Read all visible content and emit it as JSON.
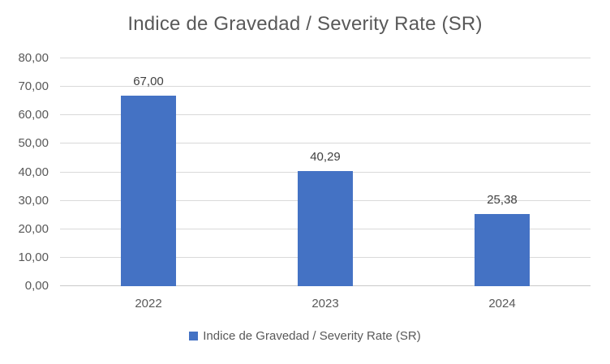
{
  "title": "Indice de Gravedad / Severity Rate (SR)",
  "legend": {
    "swatch_color": "#4472C4",
    "label": "Indice de Gravedad / Severity Rate (SR)"
  },
  "colors": {
    "bar": "#4472C4",
    "title_text": "#595959",
    "axis_text": "#595959",
    "value_label_text": "#404040",
    "gridline": "#D9D9D9",
    "axis_line": "#C9C9C9",
    "background": "#FFFFFF"
  },
  "chart_data": {
    "type": "bar",
    "title": "Indice de Gravedad / Severity Rate (SR)",
    "categories": [
      "2022",
      "2023",
      "2024"
    ],
    "values": [
      67.0,
      40.29,
      25.38
    ],
    "value_labels": [
      "67,00",
      "40,29",
      "25,38"
    ],
    "series_name": "Indice de Gravedad / Severity Rate (SR)",
    "xlabel": "",
    "ylabel": "",
    "ylim": [
      0,
      80
    ],
    "ytick_step": 10,
    "ytick_labels": [
      "0,00",
      "10,00",
      "20,00",
      "30,00",
      "40,00",
      "50,00",
      "60,00",
      "70,00",
      "80,00"
    ],
    "grid": true,
    "legend_position": "bottom",
    "bar_color": "#4472C4"
  }
}
